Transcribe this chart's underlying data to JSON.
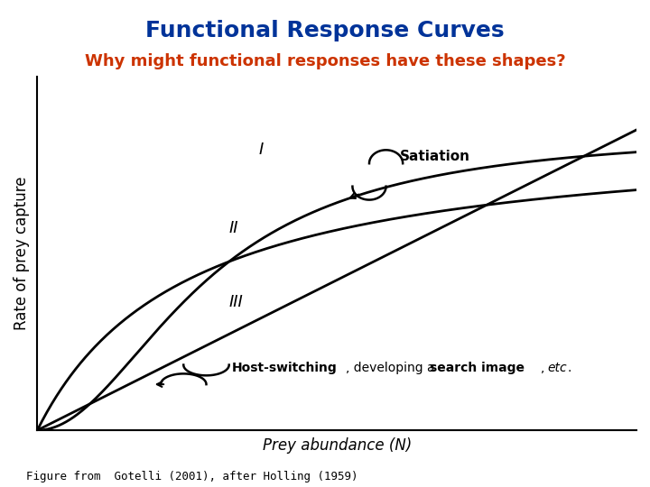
{
  "title": "Functional Response Curves",
  "subtitle": "Why might functional responses have these shapes?",
  "title_color": "#003399",
  "subtitle_color": "#CC3300",
  "xlabel": "Prey abundance (N)",
  "ylabel": "Rate of prey capture",
  "footnote": "Figure from  Gotelli (2001), after Holling (1959)",
  "curve_labels": [
    "I",
    "II",
    "III"
  ],
  "satiation_label": "Satiation",
  "background_color": "#ffffff",
  "axis_color": "#000000"
}
